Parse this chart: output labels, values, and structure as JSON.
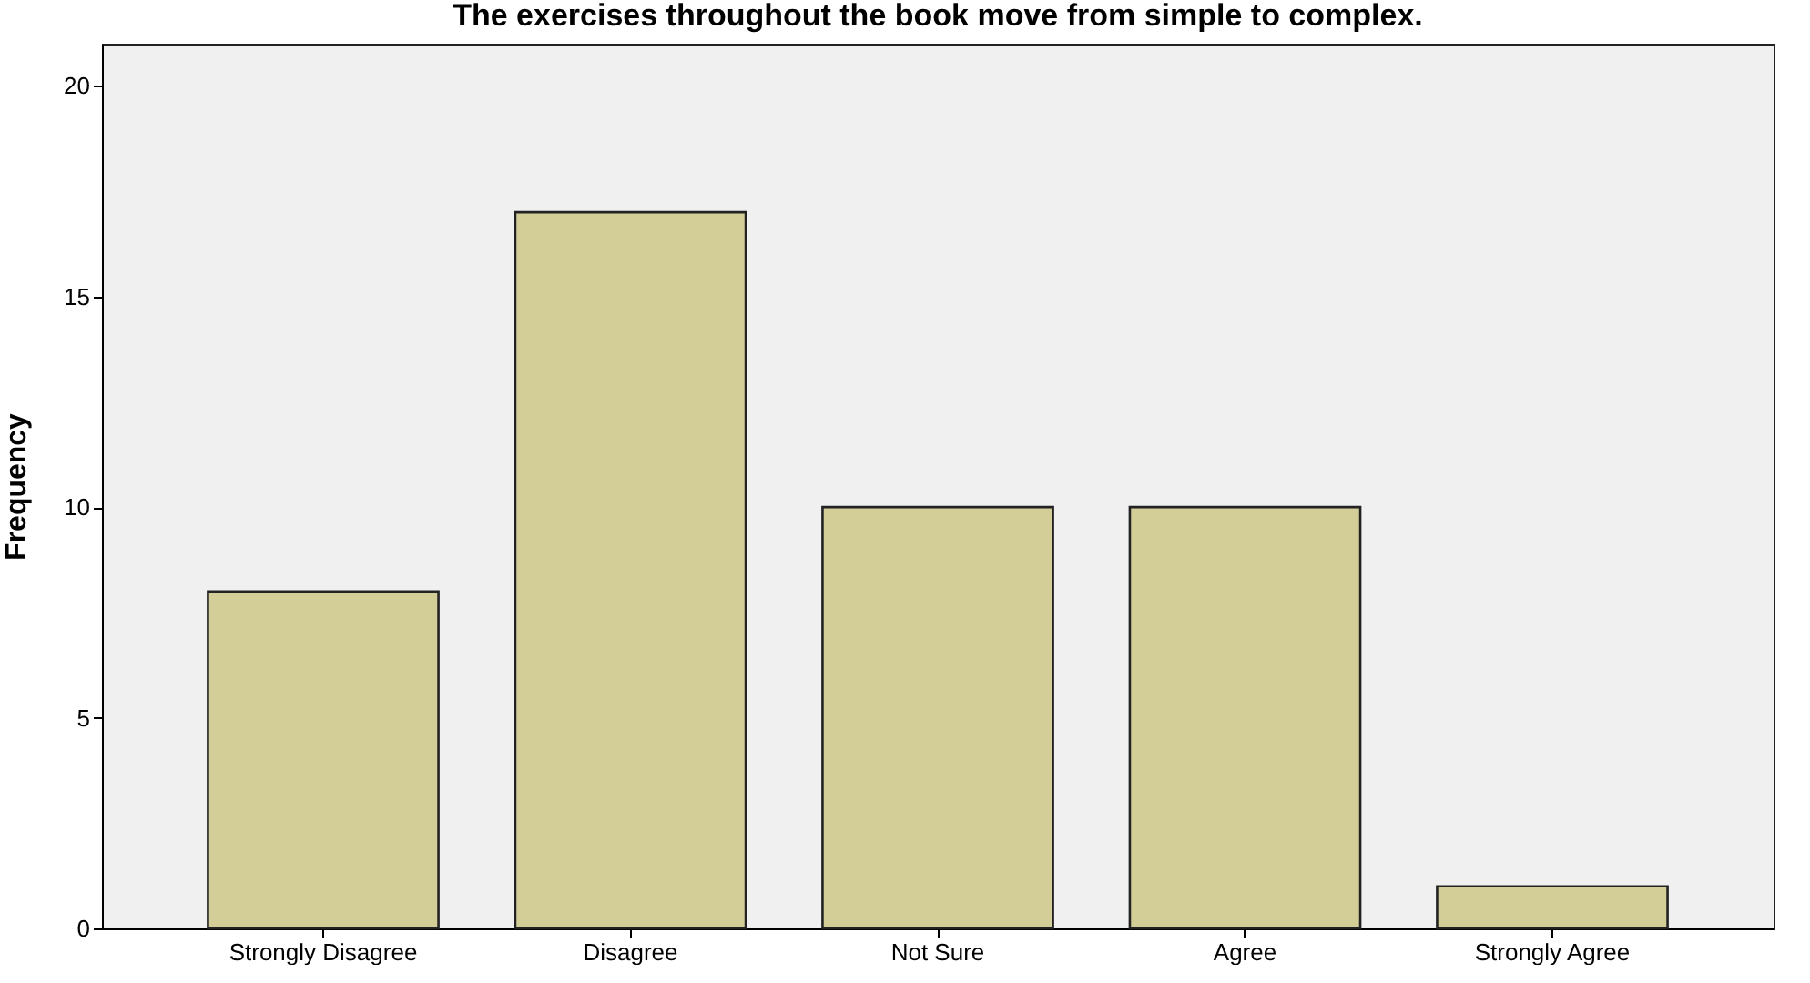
{
  "chart_data": {
    "type": "bar",
    "title": "The exercises throughout the book move from simple to complex.",
    "ylabel": "Frequency",
    "categories": [
      "Strongly Disagree",
      "Disagree",
      "Not Sure",
      "Agree",
      "Strongly Agree"
    ],
    "values": [
      8,
      17,
      10,
      10,
      1
    ],
    "color": "#d3ce97",
    "ylim": [
      0,
      21
    ],
    "yticks": [
      0,
      5,
      10,
      15,
      20
    ],
    "grid": false
  }
}
